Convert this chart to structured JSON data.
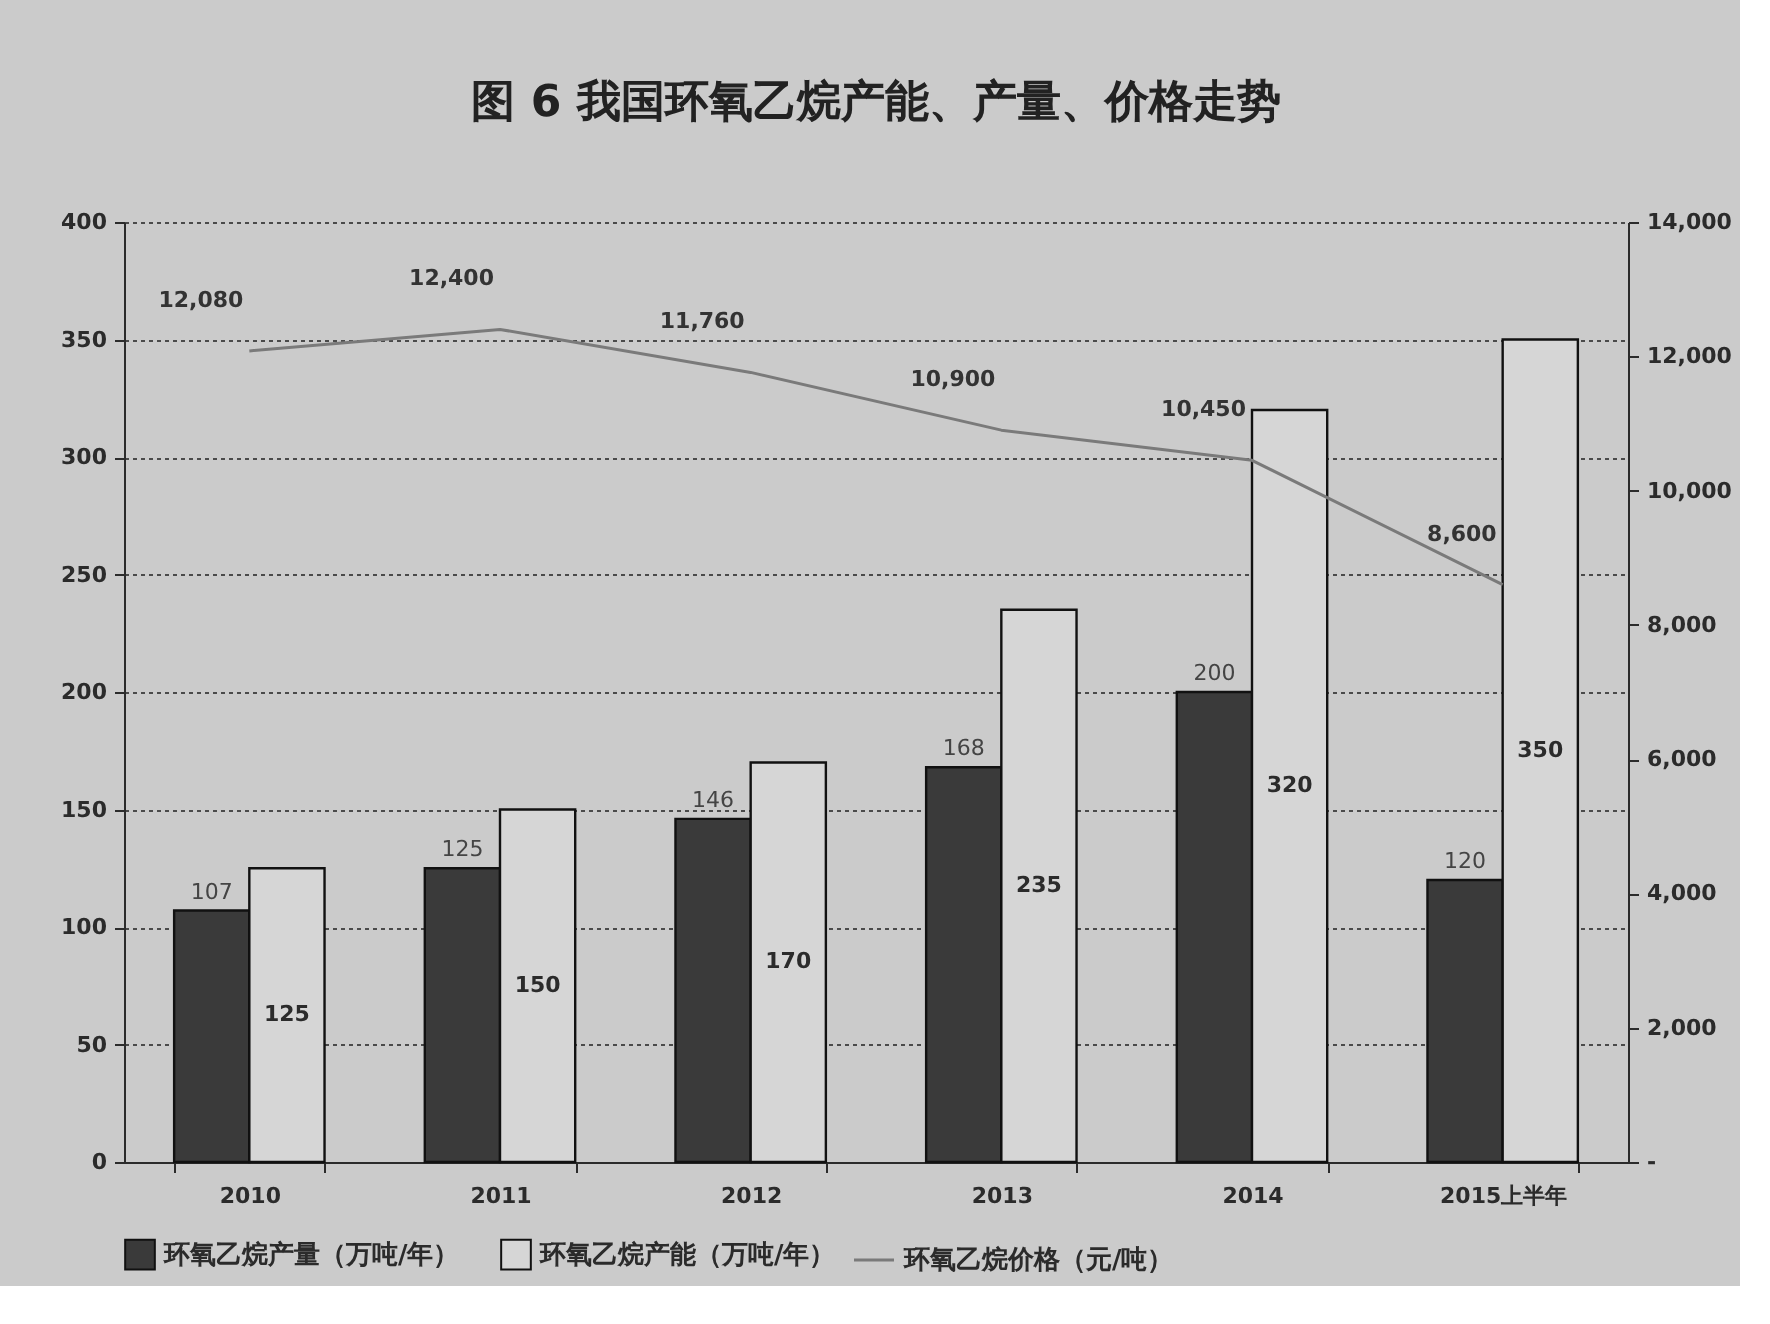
{
  "chart_data": {
    "type": "bar",
    "title": "图 6 我国环氧乙烷产能、产量、价格走势",
    "categories": [
      "2010",
      "2011",
      "2012",
      "2013",
      "2014",
      "2015上半年"
    ],
    "series": [
      {
        "name": "环氧乙烷产量（万吨/年）",
        "color": "#3a3a3a",
        "values": [
          107,
          125,
          146,
          168,
          200,
          120
        ],
        "value_labels": [
          "107",
          "125",
          "146",
          "168",
          "200",
          "120"
        ]
      },
      {
        "name": "环氧乙烷产能（万吨/年）",
        "color": "#d6d6d6",
        "values": [
          125,
          150,
          170,
          235,
          320,
          350
        ],
        "value_labels": [
          "125",
          "150",
          "170",
          "235",
          "320",
          "350"
        ]
      },
      {
        "name": "环氧乙烷价格（元/吨）",
        "type": "line",
        "axis": "y2",
        "color": "#7a7a7a",
        "values": [
          12080,
          12400,
          11760,
          10900,
          10450,
          8600
        ],
        "value_labels": [
          "12,080",
          "12,400",
          "11,760",
          "10,900",
          "10,450",
          "8,600"
        ]
      }
    ],
    "ylim": [
      0,
      400
    ],
    "yticks": [
      0,
      50,
      100,
      150,
      200,
      250,
      300,
      350,
      400
    ],
    "y2lim": [
      0,
      14000
    ],
    "y2ticks": [
      {
        "value": 0,
        "label": "-"
      },
      {
        "value": 2000,
        "label": "2,000"
      },
      {
        "value": 4000,
        "label": "4,000"
      },
      {
        "value": 6000,
        "label": "6,000"
      },
      {
        "value": 8000,
        "label": "8,000"
      },
      {
        "value": 10000,
        "label": "10,000"
      },
      {
        "value": 12000,
        "label": "12,000"
      },
      {
        "value": 14000,
        "label": "14,000"
      }
    ],
    "grid": "y",
    "legend": "bottom"
  }
}
